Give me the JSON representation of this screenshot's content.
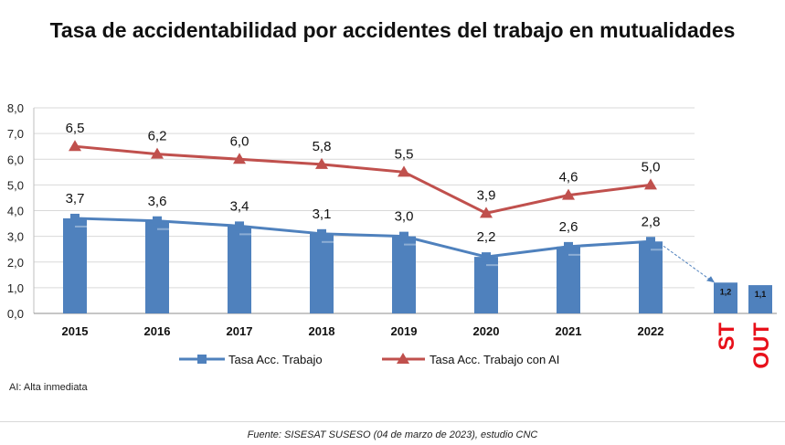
{
  "title": "Tasa de accidentabilidad por accidentes del trabajo en mutualidades",
  "note": "AI: Alta inmediata",
  "source": {
    "prefix": "Fuente: SISESAT SUSESO (04 de marzo de 2023),",
    "suffix": " estudio CNC"
  },
  "colors": {
    "bar": "#4f81bd",
    "line_trabajo": "#4f81bd",
    "line_con_ai": "#c0504d",
    "extra_label": "#e8101a",
    "grid": "#d9d9d9"
  },
  "chart_data": {
    "type": "bar+line",
    "categories": [
      "2015",
      "2016",
      "2017",
      "2018",
      "2019",
      "2020",
      "2021",
      "2022"
    ],
    "ylim": [
      0,
      8
    ],
    "yticks": [
      "0,0",
      "1,0",
      "2,0",
      "3,0",
      "4,0",
      "5,0",
      "6,0",
      "7,0",
      "8,0"
    ],
    "grid": true,
    "series": [
      {
        "name": "Tasa Acc. Trabajo",
        "kind": "bar+line",
        "marker": "square",
        "values": [
          3.7,
          3.6,
          3.4,
          3.1,
          3.0,
          2.2,
          2.6,
          2.8
        ],
        "labels": [
          "3,7",
          "3,6",
          "3,4",
          "3,1",
          "3,0",
          "2,2",
          "2,6",
          "2,8"
        ]
      },
      {
        "name": "Tasa Acc. Trabajo con AI",
        "kind": "line",
        "marker": "triangle",
        "values": [
          6.5,
          6.2,
          6.0,
          5.8,
          5.5,
          3.9,
          4.6,
          5.0
        ],
        "labels": [
          "6,5",
          "6,2",
          "6,0",
          "5,8",
          "5,5",
          "3,9",
          "4,6",
          "5,0"
        ]
      }
    ],
    "extra_bars": [
      {
        "category": "ST",
        "value": 1.2,
        "label": "1,2"
      },
      {
        "category": "OUT",
        "value": 1.1,
        "label": "1,1"
      }
    ],
    "legend_position": "bottom"
  }
}
